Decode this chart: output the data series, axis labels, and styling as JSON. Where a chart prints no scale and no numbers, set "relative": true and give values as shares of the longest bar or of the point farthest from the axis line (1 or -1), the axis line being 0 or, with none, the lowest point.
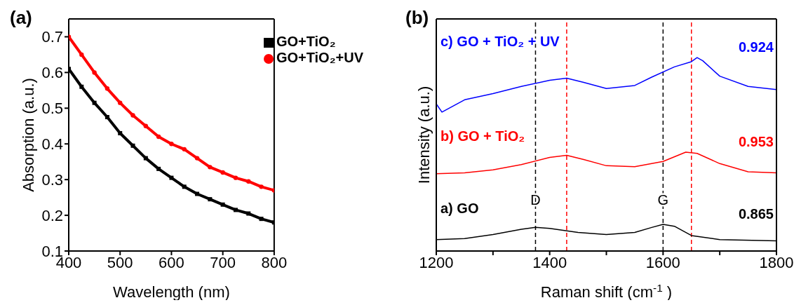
{
  "chart_data": [
    {
      "type": "line",
      "title": "(a)",
      "xlabel": "Wavelength (nm)",
      "ylabel": "Absorption (a.u.)",
      "x": [
        400,
        425,
        450,
        475,
        500,
        525,
        550,
        575,
        600,
        625,
        650,
        675,
        700,
        725,
        750,
        775,
        800
      ],
      "xlim": [
        400,
        800
      ],
      "xticks": [
        400,
        500,
        600,
        700,
        800
      ],
      "ylim": [
        0.1,
        0.75
      ],
      "yticks": [
        0.1,
        0.2,
        0.3,
        0.4,
        0.5,
        0.6,
        0.7
      ],
      "legend": "top right",
      "grid": false,
      "series": [
        {
          "name": "GO+TiO₂",
          "color": "#000000",
          "marker": "square",
          "values": [
            0.61,
            0.56,
            0.515,
            0.475,
            0.43,
            0.395,
            0.36,
            0.33,
            0.305,
            0.28,
            0.26,
            0.245,
            0.23,
            0.215,
            0.205,
            0.19,
            0.18
          ]
        },
        {
          "name": "GO+TiO₂+UV",
          "color": "#ff0000",
          "marker": "circle",
          "values": [
            0.7,
            0.65,
            0.6,
            0.555,
            0.515,
            0.48,
            0.45,
            0.42,
            0.4,
            0.385,
            0.36,
            0.335,
            0.32,
            0.305,
            0.295,
            0.28,
            0.27
          ]
        }
      ]
    },
    {
      "type": "line",
      "title": "(b)",
      "xlabel": "Raman shift (cm$^{-1}$)",
      "ylabel": "Intensity (a.u.)",
      "relative": true,
      "tick_labels": "x",
      "legend": false,
      "grid": false,
      "xlim": [
        1200,
        1800
      ],
      "xticks": [
        1200,
        {
          "value": 1300,
          "label": null
        },
        1400,
        {
          "value": 1500,
          "label": null
        },
        1600,
        {
          "value": 1700,
          "label": null
        },
        1800
      ],
      "series": [
        {
          "name": "a) GO",
          "color": "#000000",
          "x": [
            1200,
            1250,
            1300,
            1350,
            1375,
            1400,
            1450,
            1500,
            1550,
            1580,
            1600,
            1620,
            1650,
            1700,
            1800
          ],
          "values": [
            0.059,
            0.064,
            0.085,
            0.112,
            0.122,
            0.117,
            0.096,
            0.085,
            0.096,
            0.122,
            0.138,
            0.128,
            0.08,
            0.059,
            0.053
          ]
        },
        {
          "name": "b) GO + TiO₂",
          "color": "#ff0000",
          "x": [
            1200,
            1250,
            1300,
            1350,
            1400,
            1430,
            1460,
            1500,
            1550,
            1600,
            1640,
            1660,
            1700,
            1750,
            1800
          ],
          "values": [
            0.4,
            0.404,
            0.42,
            0.447,
            0.484,
            0.495,
            0.473,
            0.441,
            0.436,
            0.463,
            0.511,
            0.505,
            0.452,
            0.41,
            0.404
          ]
        },
        {
          "name": "c) GO + TiO₂ + UV",
          "color": "#0000ff",
          "x": [
            1200,
            1210,
            1250,
            1300,
            1350,
            1400,
            1430,
            1460,
            1500,
            1550,
            1580,
            1620,
            1650,
            1660,
            1670,
            1700,
            1750,
            1800
          ],
          "values": [
            0.761,
            0.718,
            0.782,
            0.814,
            0.851,
            0.883,
            0.894,
            0.872,
            0.84,
            0.856,
            0.899,
            0.952,
            0.979,
            1,
            0.984,
            0.904,
            0.851,
            0.835
          ]
        }
      ],
      "ref_lines": [
        {
          "axis": "x",
          "value": 1430,
          "color": "#ff0000",
          "line_style": "dashed"
        },
        {
          "axis": "x",
          "value": 1650,
          "color": "#ff0000",
          "line_style": "dashed"
        },
        {
          "axis": "x",
          "value": 1375,
          "label": "D",
          "color": "#000000",
          "line_style": "dashed"
        },
        {
          "axis": "x",
          "value": 1600,
          "label": "G",
          "color": "#000000",
          "line_style": "dashed"
        }
      ],
      "annotations": [
        "0.865",
        "0.953",
        "0.924"
      ]
    }
  ]
}
